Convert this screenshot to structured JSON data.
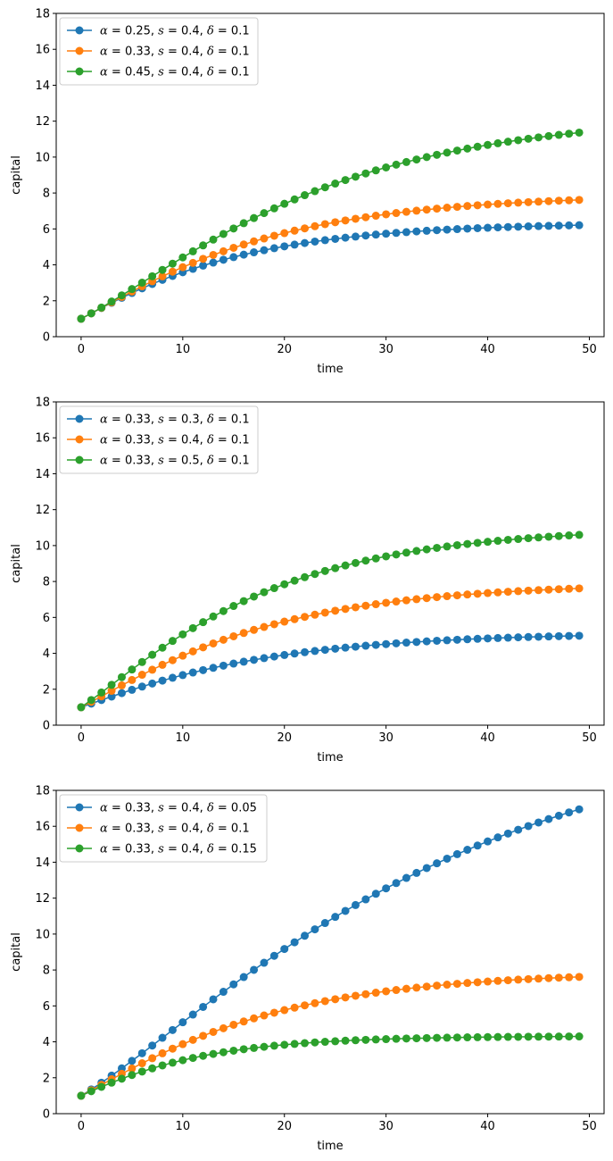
{
  "chart_data": [
    {
      "type": "line",
      "xlabel": "time",
      "ylabel": "capital",
      "xlim": [
        -2.45,
        51.45
      ],
      "ylim": [
        0,
        18
      ],
      "xticks": [
        0,
        10,
        20,
        30,
        40,
        50
      ],
      "yticks": [
        0,
        2,
        4,
        6,
        8,
        10,
        12,
        14,
        16,
        18
      ],
      "legend_position": "upper-left",
      "grid": false,
      "series": [
        {
          "name": "α = 0.25, s = 0.4, δ = 0.1",
          "alpha": "0.25",
          "s": "0.4",
          "delta": "0.1",
          "k0": 1,
          "color": "#1f77b4"
        },
        {
          "name": "α = 0.33, s = 0.4, δ = 0.1",
          "alpha": "0.33",
          "s": "0.4",
          "delta": "0.1",
          "k0": 1,
          "color": "#ff7f0e"
        },
        {
          "name": "α = 0.45, s = 0.4, δ = 0.1",
          "alpha": "0.45",
          "s": "0.4",
          "delta": "0.1",
          "k0": 1,
          "color": "#2ca02c"
        }
      ]
    },
    {
      "type": "line",
      "xlabel": "time",
      "ylabel": "capital",
      "xlim": [
        -2.45,
        51.45
      ],
      "ylim": [
        0,
        18
      ],
      "xticks": [
        0,
        10,
        20,
        30,
        40,
        50
      ],
      "yticks": [
        0,
        2,
        4,
        6,
        8,
        10,
        12,
        14,
        16,
        18
      ],
      "legend_position": "upper-left",
      "grid": false,
      "series": [
        {
          "name": "α = 0.33, s = 0.3, δ = 0.1",
          "alpha": "0.33",
          "s": "0.3",
          "delta": "0.1",
          "k0": 1,
          "color": "#1f77b4"
        },
        {
          "name": "α = 0.33, s = 0.4, δ = 0.1",
          "alpha": "0.33",
          "s": "0.4",
          "delta": "0.1",
          "k0": 1,
          "color": "#ff7f0e"
        },
        {
          "name": "α = 0.33, s = 0.5, δ = 0.1",
          "alpha": "0.33",
          "s": "0.5",
          "delta": "0.1",
          "k0": 1,
          "color": "#2ca02c"
        }
      ]
    },
    {
      "type": "line",
      "xlabel": "time",
      "ylabel": "capital",
      "xlim": [
        -2.45,
        51.45
      ],
      "ylim": [
        0,
        18
      ],
      "xticks": [
        0,
        10,
        20,
        30,
        40,
        50
      ],
      "yticks": [
        0,
        2,
        4,
        6,
        8,
        10,
        12,
        14,
        16,
        18
      ],
      "legend_position": "upper-left",
      "grid": false,
      "series": [
        {
          "name": "α = 0.33, s = 0.4, δ = 0.05",
          "alpha": "0.33",
          "s": "0.4",
          "delta": "0.05",
          "k0": 1,
          "color": "#1f77b4"
        },
        {
          "name": "α = 0.33, s = 0.4, δ = 0.1",
          "alpha": "0.33",
          "s": "0.4",
          "delta": "0.1",
          "k0": 1,
          "color": "#ff7f0e"
        },
        {
          "name": "α = 0.33, s = 0.4, δ = 0.15",
          "alpha": "0.33",
          "s": "0.4",
          "delta": "0.15",
          "k0": 1,
          "color": "#2ca02c"
        }
      ]
    }
  ]
}
